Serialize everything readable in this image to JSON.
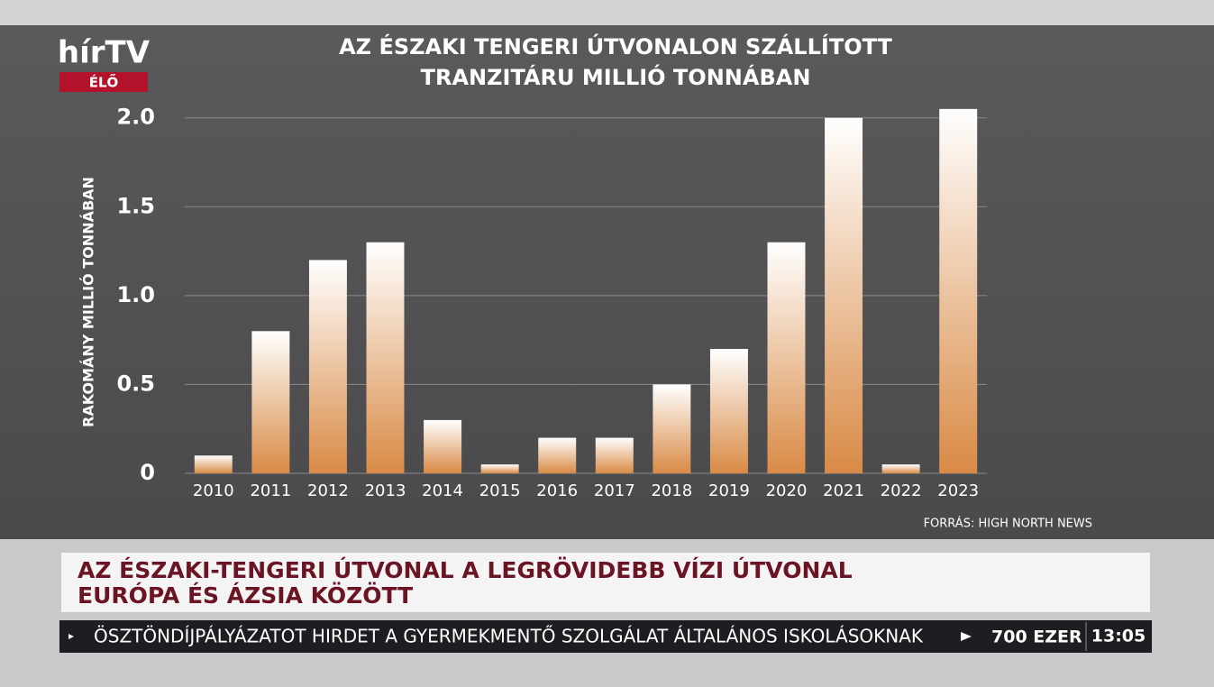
{
  "chart_data": {
    "type": "bar",
    "title": "AZ ÉSZAKI TENGERI ÚTVONALON SZÁLLÍTOTT",
    "subtitle": "TRANZITÁRU MILLIÓ TONNÁBAN",
    "y_label": "RAKOMÁNY MILLIÓ TONNÁBAN",
    "source": "FORRÁS: HIGH NORTH NEWS",
    "categories": [
      "2010",
      "2011",
      "2012",
      "2013",
      "2014",
      "2015",
      "2016",
      "2017",
      "2018",
      "2019",
      "2020",
      "2021",
      "2022",
      "2023"
    ],
    "values": [
      0.1,
      0.8,
      1.2,
      1.3,
      0.3,
      0.05,
      0.2,
      0.2,
      0.5,
      0.7,
      1.3,
      2.0,
      0.05,
      2.05
    ],
    "color": "#d98a45",
    "ylim": [
      0,
      2.1
    ],
    "yticks": [
      0,
      0.5,
      {
        "value": 1,
        "label": "1.0"
      },
      1.5,
      {
        "value": 2,
        "label": "2.0"
      }
    ],
    "grid": true
  },
  "logo": {
    "brand": "hírTV",
    "live": "ÉLŐ"
  },
  "headline": {
    "line1": "AZ ÉSZAKI-TENGERI ÚTVONAL A LEGRÖVIDEBB VÍZI ÚTVONAL",
    "line2": "EURÓPA ÉS ÁZSIA KÖZÖTT"
  },
  "ticker": {
    "text": "ÖSZTÖNDÍJPÁLYÁZATOT HIRDET A GYERMEKMENTŐ SZOLGÁLAT ÁLTALÁNOS ISKOLÁSOKNAK",
    "next": "700 EZER",
    "time": "13:05"
  }
}
